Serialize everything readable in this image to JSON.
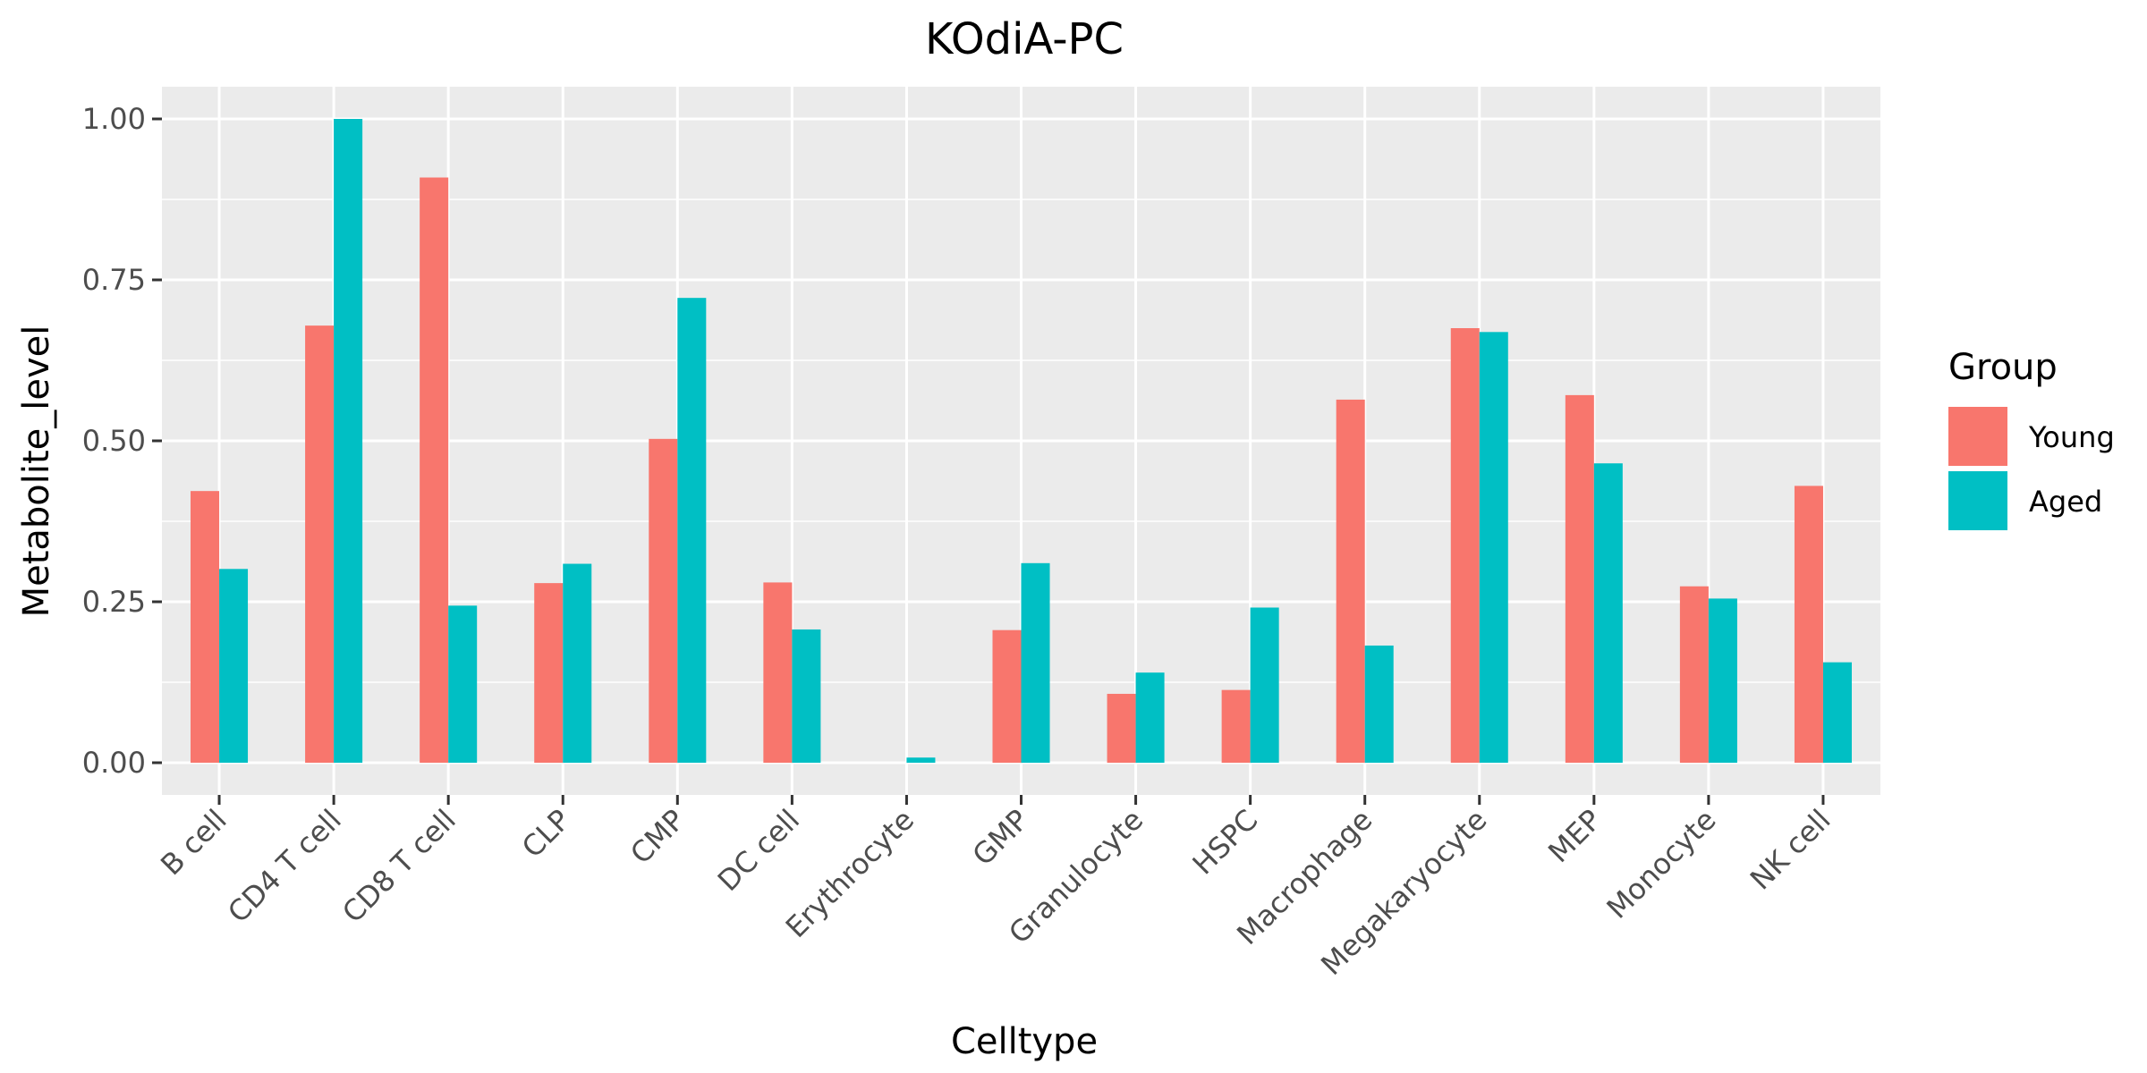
{
  "chart_data": {
    "type": "bar",
    "title": "KOdiA-PC",
    "xlabel": "Celltype",
    "ylabel": "Metabolite_level",
    "categories": [
      "B cell",
      "CD4 T cell",
      "CD8 T cell",
      "CLP",
      "CMP",
      "DC cell",
      "Erythrocyte",
      "GMP",
      "Granulocyte",
      "HSPC",
      "Macrophage",
      "Megakaryocyte",
      "MEP",
      "Monocyte",
      "NK cell"
    ],
    "series": [
      {
        "name": "Young",
        "color": "#F8766D",
        "values": [
          0.422,
          0.679,
          0.909,
          0.279,
          0.503,
          0.28,
          0.0,
          0.206,
          0.107,
          0.113,
          0.564,
          0.675,
          0.571,
          0.274,
          0.43
        ]
      },
      {
        "name": "Aged",
        "color": "#00BFC4",
        "values": [
          0.301,
          1.0,
          0.244,
          0.309,
          0.722,
          0.207,
          0.008,
          0.31,
          0.14,
          0.241,
          0.182,
          0.669,
          0.465,
          0.255,
          0.156
        ]
      }
    ],
    "ylim": [
      -0.05,
      1.05
    ],
    "yticks": [
      0.0,
      0.25,
      0.5,
      0.75,
      1.0
    ],
    "ytick_labels": [
      "0.00",
      "0.25",
      "0.50",
      "0.75",
      "1.00"
    ],
    "legend_title": "Group",
    "legend_position": "right",
    "grid": true,
    "panel_background": "#EBEBEB",
    "grid_color": "#FFFFFF"
  }
}
